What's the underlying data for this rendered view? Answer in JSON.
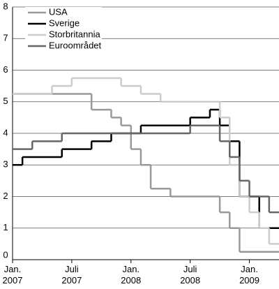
{
  "chart_data": {
    "type": "step-line",
    "xlim": [
      "2007-01",
      "2009-04"
    ],
    "xticks": [
      {
        "value": "2007-01",
        "label": "Jan. 2007"
      },
      {
        "value": "2007-07",
        "label": "Juli 2007"
      },
      {
        "value": "2008-01",
        "label": "Jan. 2008"
      },
      {
        "value": "2008-07",
        "label": "Juli 2008"
      },
      {
        "value": "2009-01",
        "label": "Jan. 2009"
      }
    ],
    "ylim": [
      0,
      8
    ],
    "yticks": [
      0,
      1,
      2,
      3,
      4,
      5,
      6,
      7,
      8
    ],
    "grid": true,
    "legend": "upper-left",
    "series": [
      {
        "name": "USA",
        "color": "#999999",
        "x": [
          "2007-01",
          "2007-09",
          "2007-11",
          "2007-12",
          "2008-01",
          "2008-02",
          "2008-03",
          "2008-05",
          "2008-10",
          "2008-11",
          "2008-12"
        ],
        "values": [
          5.25,
          4.75,
          4.5,
          4.25,
          3.5,
          3.0,
          2.25,
          2.0,
          1.5,
          1.0,
          0.25
        ]
      },
      {
        "name": "Sverige",
        "color": "#000000",
        "x": [
          "2007-01",
          "2007-02",
          "2007-06",
          "2007-09",
          "2007-11",
          "2008-02",
          "2008-07",
          "2008-09",
          "2008-10",
          "2008-11",
          "2008-12",
          "2009-02"
        ],
        "values": [
          3.0,
          3.25,
          3.5,
          3.75,
          4.0,
          4.25,
          4.5,
          4.75,
          4.25,
          3.75,
          2.0,
          1.0
        ]
      },
      {
        "name": "Storbritannia",
        "color": "#cccccc",
        "x": [
          "2007-01",
          "2007-05",
          "2007-07",
          "2007-12",
          "2008-02",
          "2008-04",
          "2008-10",
          "2008-11",
          "2008-12",
          "2009-01",
          "2009-02",
          "2009-03"
        ],
        "values": [
          5.25,
          5.5,
          5.75,
          5.5,
          5.25,
          5.0,
          4.5,
          3.0,
          2.0,
          1.5,
          1.0,
          0.5
        ]
      },
      {
        "name": "Euroområdet",
        "color": "#666666",
        "x": [
          "2007-01",
          "2007-03",
          "2007-06",
          "2008-07",
          "2008-10",
          "2008-11",
          "2008-12",
          "2009-01",
          "2009-03"
        ],
        "values": [
          3.5,
          3.75,
          4.0,
          4.25,
          3.75,
          3.25,
          2.5,
          2.0,
          1.5
        ]
      }
    ]
  }
}
